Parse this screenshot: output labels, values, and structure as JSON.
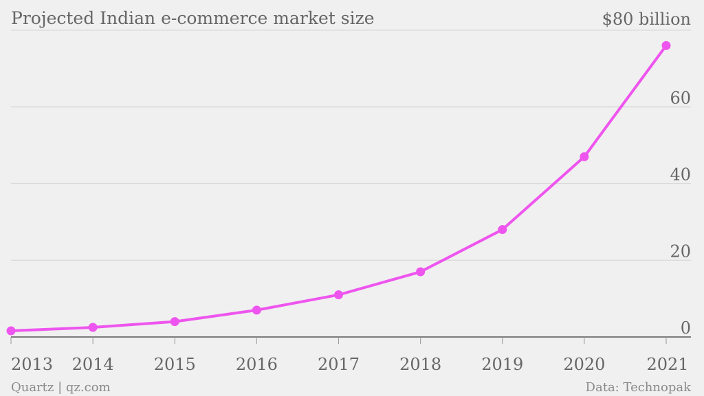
{
  "chart_data": {
    "type": "line",
    "title": "Projected Indian e-commerce market size",
    "unit_label": "$80 billion",
    "x": [
      "2013",
      "2014",
      "2015",
      "2016",
      "2017",
      "2018",
      "2019",
      "2020",
      "2021"
    ],
    "series": [
      {
        "values": [
          1.6,
          2.5,
          4,
          7,
          11,
          17,
          28,
          47,
          76
        ],
        "color": "#ee55ee"
      }
    ],
    "ylim": [
      0,
      80
    ],
    "yticks": [
      "0",
      "20",
      "40",
      "60"
    ],
    "grid": true,
    "yaxis_side": "right"
  },
  "footer": {
    "source_left": "Quartz | qz.com",
    "source_right": "Data: Technopak"
  }
}
